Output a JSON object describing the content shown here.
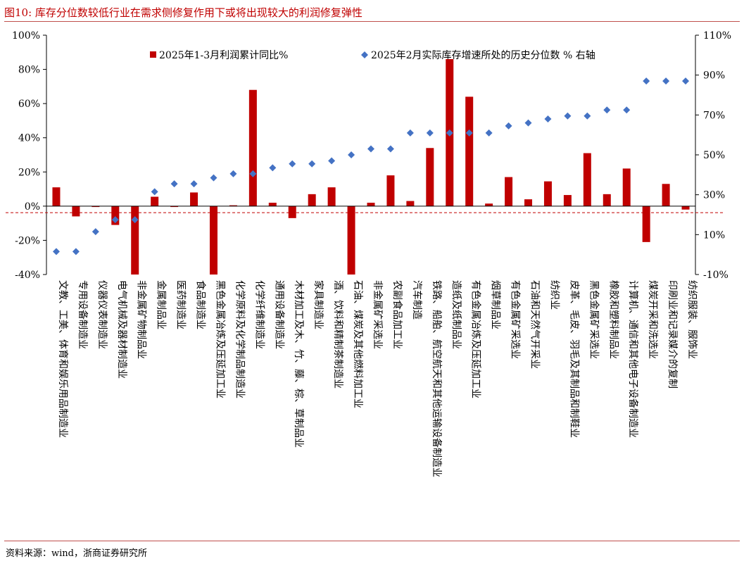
{
  "header": {
    "title": "图10:   库存分位数较低行业在需求侧修复作用下或将出现较大的利润修复弹性"
  },
  "footer": {
    "source": "资料来源：wind，浙商证券研究所"
  },
  "colors": {
    "bar": "#c00000",
    "marker": "#4472c4",
    "ref_line": "#c00000",
    "title": "#c00000"
  },
  "chart_data": {
    "type": "bar",
    "categories": [
      "文教、工美、体育和娱乐用品制造业",
      "专用设备制造业",
      "仪器仪表制造业",
      "电气机械及器材制造业",
      "非金属矿物制品业",
      "金属制品业",
      "医药制造业",
      "食品制造业",
      "黑色金属冶炼及压延加工业",
      "化学原料及化学制品制造业",
      "化学纤维制造业",
      "通用设备制造业",
      "木材加工及木、竹、藤、棕、草制品业",
      "家具制造业",
      "酒、饮料和精制茶制造业",
      "石油、煤炭及其他燃料加工业",
      "非金属矿采选业",
      "农副食品加工业",
      "汽车制造",
      "铁路、船舶、航空航天和其他运输设备制造业",
      "造纸及纸制品业",
      "有色金属冶炼及压延加工业",
      "烟草制品业",
      "有色金属矿采选业",
      "石油和天然气开采业",
      "纺织业",
      "皮革、毛皮、羽毛及其制品和制鞋业",
      "黑色金属矿采选业",
      "橡胶和塑料制品业",
      "计算机、通信和其他电子设备制造业",
      "煤炭开采和洗选业",
      "印刷业和记录媒介的复制",
      "纺织服装、服饰业"
    ],
    "series": [
      {
        "name": "2025年1-3月利润累计同比%",
        "type": "bar",
        "axis": "left",
        "values": [
          11,
          -6,
          -0.5,
          -11,
          -40,
          5.5,
          -0.5,
          8,
          -40,
          0.5,
          68,
          2,
          -7,
          7,
          11,
          -40,
          2,
          18,
          3,
          34,
          86,
          64,
          1.5,
          17,
          4,
          14.5,
          6.5,
          31,
          7,
          22,
          -21,
          13,
          -2
        ]
      },
      {
        "name": "2025年2月实际库存增速所处的历史分位数 % 右轴",
        "type": "scatter",
        "axis": "right",
        "values": [
          1.5,
          1.5,
          11.5,
          17.5,
          17.5,
          31.5,
          35.5,
          35.5,
          38.5,
          40.5,
          40.5,
          43.5,
          45.5,
          45.5,
          47,
          50,
          53,
          53,
          61,
          61,
          61,
          61,
          61,
          64.5,
          66,
          68,
          69.5,
          69.5,
          72.5,
          72.5,
          87,
          87,
          87
        ]
      }
    ],
    "left_axis": {
      "ylim": [
        -40,
        100
      ],
      "ticks": [
        -40,
        -20,
        0,
        20,
        40,
        60,
        80,
        100
      ],
      "tick_labels": [
        "-40%",
        "-20%",
        "0%",
        "20%",
        "40%",
        "60%",
        "80%",
        "100%"
      ]
    },
    "right_axis": {
      "ylim": [
        -10,
        110
      ],
      "ticks": [
        -10,
        10,
        30,
        50,
        70,
        90,
        110
      ],
      "tick_labels": [
        "-10%",
        "10%",
        "30%",
        "50%",
        "70%",
        "90%",
        "110%"
      ]
    },
    "reference_line": {
      "axis": "right",
      "value": 21,
      "style": "dashed"
    },
    "legend": {
      "position": "top"
    },
    "grid": false
  }
}
